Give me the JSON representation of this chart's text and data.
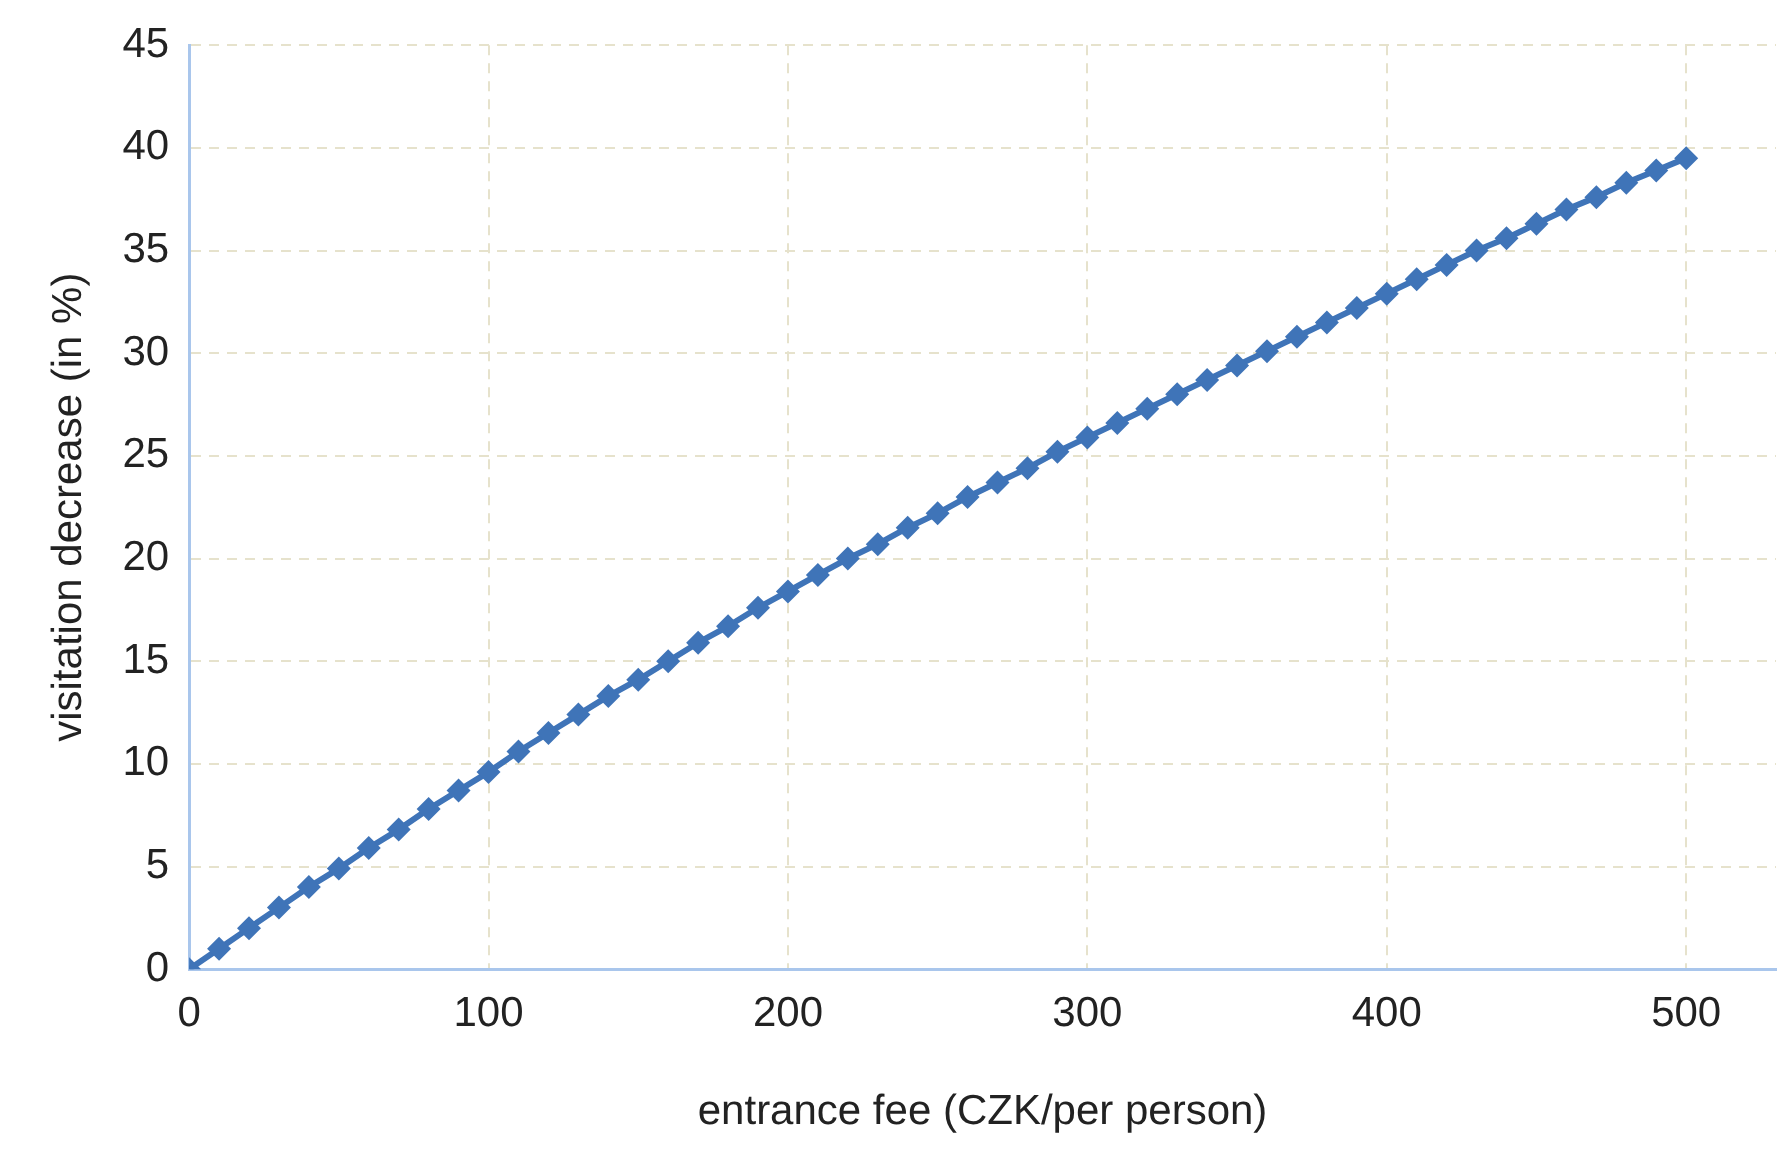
{
  "chart_data": {
    "type": "line",
    "xlabel": "entrance fee (CZK/per person)",
    "ylabel": "visitation decrease (in %)",
    "x": [
      0,
      10,
      20,
      30,
      40,
      50,
      60,
      70,
      80,
      90,
      100,
      110,
      120,
      130,
      140,
      150,
      160,
      170,
      180,
      190,
      200,
      210,
      220,
      230,
      240,
      250,
      260,
      270,
      280,
      290,
      300,
      310,
      320,
      330,
      340,
      350,
      360,
      370,
      380,
      390,
      400,
      410,
      420,
      430,
      440,
      450,
      460,
      470,
      480,
      490,
      500
    ],
    "series": [
      {
        "color": "#3f74b8",
        "values": [
          0,
          1.0,
          2.0,
          3.0,
          4.0,
          4.9,
          5.9,
          6.8,
          7.8,
          8.7,
          9.6,
          10.6,
          11.5,
          12.4,
          13.3,
          14.1,
          15.0,
          15.9,
          16.7,
          17.6,
          18.4,
          19.2,
          20.0,
          20.7,
          21.5,
          22.2,
          23.0,
          23.7,
          24.4,
          25.2,
          25.9,
          26.6,
          27.3,
          28.0,
          28.7,
          29.4,
          30.1,
          30.8,
          31.5,
          32.2,
          32.9,
          33.6,
          34.3,
          35.0,
          35.6,
          36.3,
          37.0,
          37.6,
          38.3,
          38.9,
          39.5
        ]
      }
    ],
    "xlim": [
      0,
      530
    ],
    "xticks": [
      0,
      100,
      200,
      300,
      400,
      500
    ],
    "ylim": [
      0,
      45
    ],
    "yticks": [
      0,
      5,
      10,
      15,
      20,
      25,
      30,
      35,
      40,
      45
    ],
    "grid": true,
    "legend": false,
    "marker": "diamond",
    "line_style": "solid"
  }
}
